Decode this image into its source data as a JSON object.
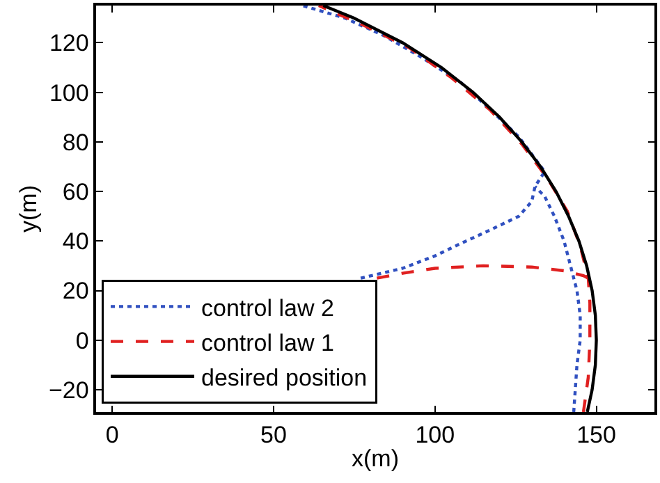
{
  "chart_data": {
    "type": "line",
    "xlabel": "x(m)",
    "ylabel": "y(m)",
    "xlim": [
      -5,
      168
    ],
    "ylim": [
      -29,
      135
    ],
    "xticks": [
      0,
      50,
      100,
      150
    ],
    "yticks": [
      -20,
      0,
      20,
      40,
      60,
      80,
      100,
      120
    ],
    "legend": "bottom left",
    "marker": "none",
    "series": [
      {
        "name": "control law 2",
        "color": "#3050c0",
        "line_style": "dotted",
        "x": [
          77,
          90,
          100,
          108,
          118,
          126,
          130,
          131,
          134,
          126,
          118,
          108,
          96,
          84,
          72,
          59,
          null,
          143,
          144,
          145,
          145,
          144,
          142,
          140,
          137,
          134,
          131
        ],
        "values": [
          25,
          29,
          34,
          39,
          45,
          50,
          56,
          62,
          68,
          82,
          92,
          104,
          114,
          123,
          130,
          135,
          null,
          -29,
          -10,
          0,
          10,
          20,
          30,
          40,
          50,
          58,
          62
        ]
      },
      {
        "name": "control law 1",
        "color": "#e02020",
        "line_style": "dashed",
        "x": [
          82,
          90,
          100,
          115,
          130,
          140,
          146,
          147.5,
          null,
          146,
          147.5,
          148,
          148,
          147.5,
          145,
          141,
          135,
          127,
          117,
          105,
          92,
          78,
          64
        ],
        "values": [
          25,
          27,
          29,
          30,
          29.5,
          28,
          26,
          25,
          null,
          -29,
          -15,
          0,
          15,
          25,
          38,
          52,
          65,
          79,
          93,
          106,
          118,
          127,
          135
        ]
      },
      {
        "name": "desired position",
        "color": "#000000",
        "line_style": "solid",
        "x": [
          147.2,
          148.7,
          149.7,
          150,
          149.7,
          148.7,
          147.0,
          144.6,
          141.4,
          137.5,
          132.7,
          126.9,
          120,
          111.8,
          102,
          90,
          74.8,
          65.4
        ],
        "values": [
          -29,
          -20,
          -10,
          0,
          10,
          20,
          30,
          40,
          50,
          60,
          70,
          80,
          90,
          100,
          110,
          120,
          130,
          135
        ]
      }
    ]
  }
}
